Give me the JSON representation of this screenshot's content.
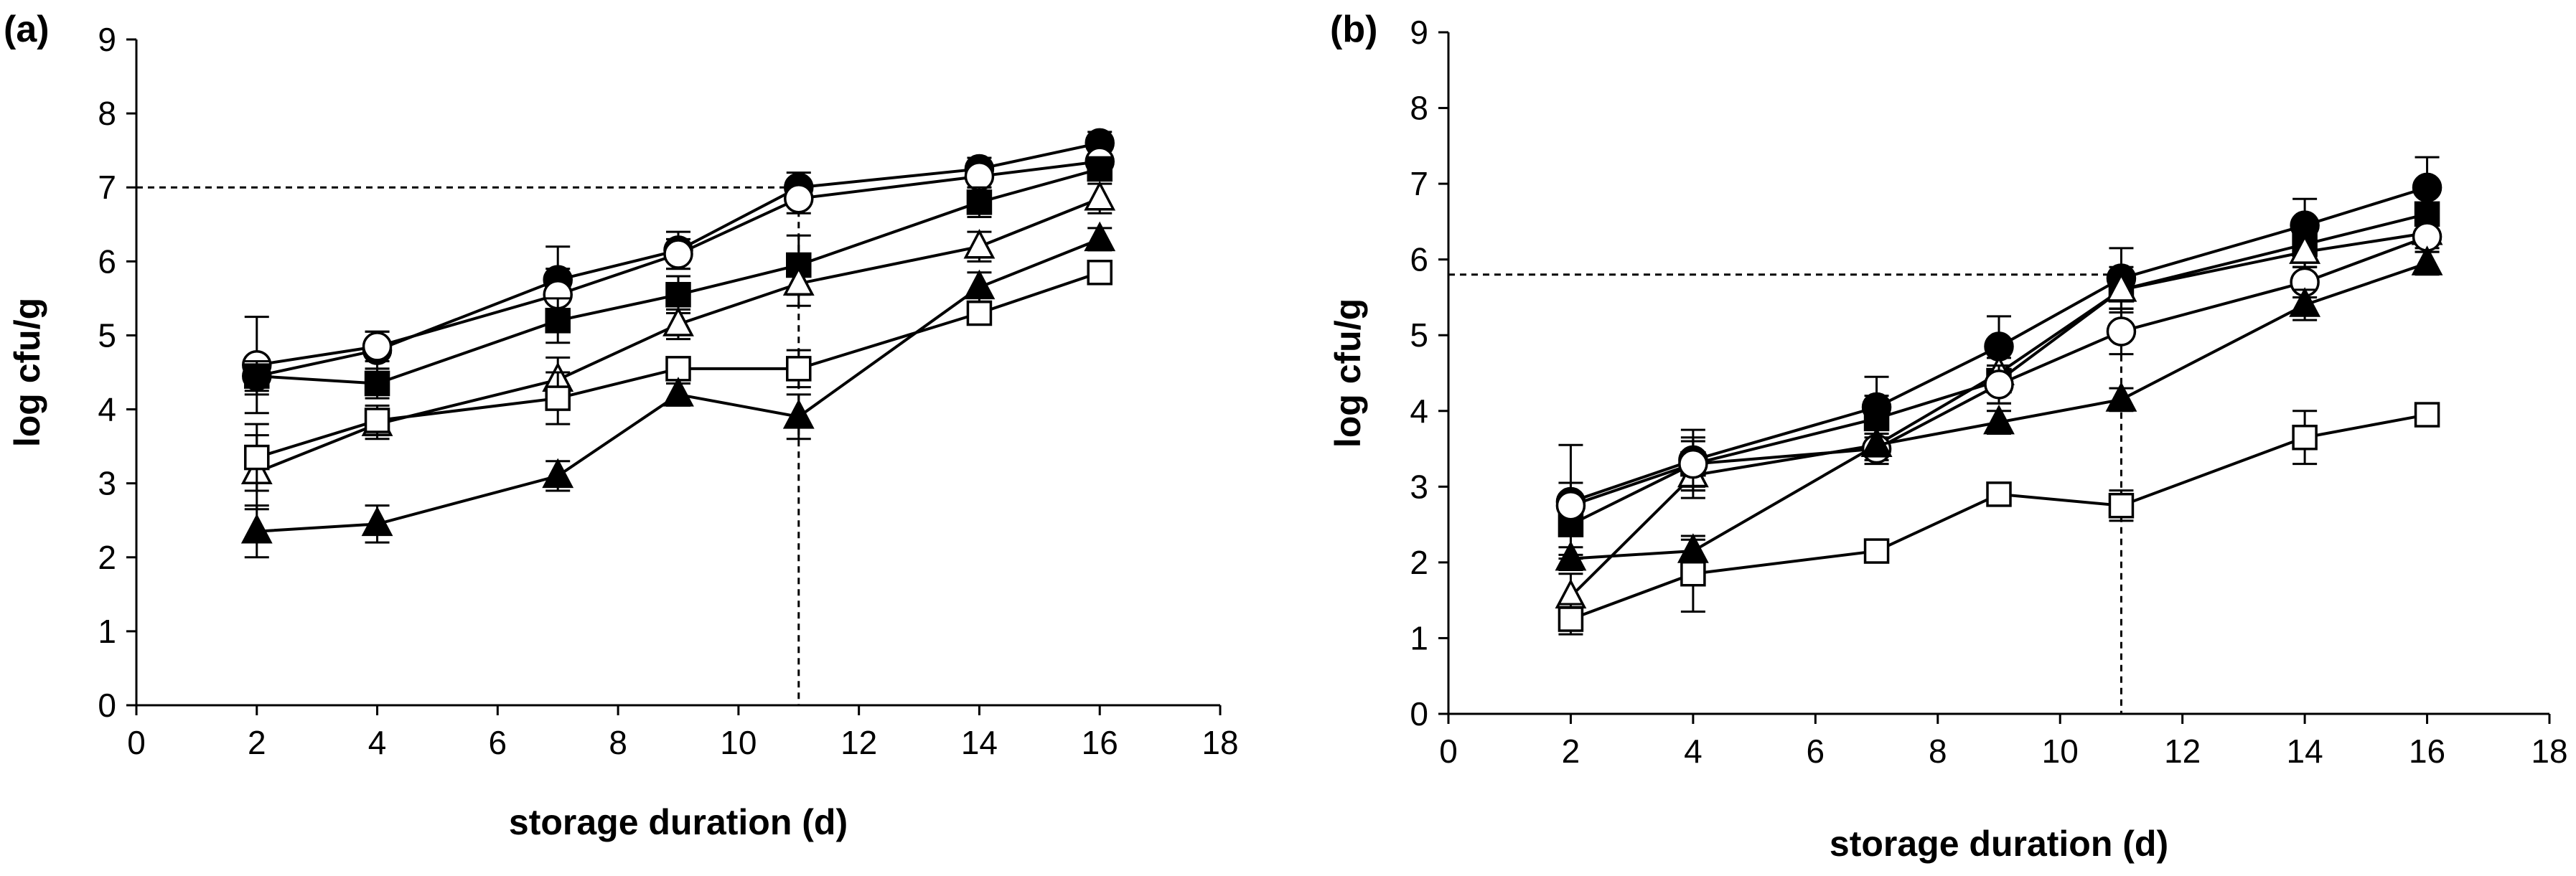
{
  "chart_data": [
    {
      "type": "line",
      "panel_label": "(a)",
      "xlabel": "storage duration (d)",
      "ylabel": "log cfu/g",
      "xlim": [
        0,
        18
      ],
      "ylim": [
        0,
        9
      ],
      "xticks": [
        "0",
        "2",
        "4",
        "6",
        "8",
        "10",
        "12",
        "14",
        "16",
        "18"
      ],
      "yticks": [
        "0",
        "1",
        "2",
        "3",
        "4",
        "5",
        "6",
        "7",
        "8",
        "9"
      ],
      "grid": false,
      "legend": "none",
      "reference_lines": {
        "y": 7.0,
        "x": 11
      },
      "x": [
        2,
        4,
        7,
        9,
        11,
        14,
        16
      ],
      "series": [
        {
          "name": "filled-circle",
          "marker": "circle",
          "filled": true,
          "values": [
            4.45,
            4.8,
            5.75,
            6.15,
            7.0,
            7.25,
            7.6
          ],
          "errors": [
            0.25,
            0.25,
            0.45,
            0.25,
            0.2,
            0.15,
            0.15
          ]
        },
        {
          "name": "open-circle",
          "marker": "circle",
          "filled": false,
          "values": [
            4.6,
            4.85,
            5.55,
            6.1,
            6.85,
            7.15,
            7.35
          ],
          "errors": [
            0.65,
            0.2,
            0.35,
            0.2,
            0.2,
            0.15,
            0.15
          ]
        },
        {
          "name": "filled-square",
          "marker": "square",
          "filled": true,
          "values": [
            4.45,
            4.35,
            5.2,
            5.55,
            5.95,
            6.8,
            7.25
          ],
          "errors": [
            0.2,
            0.2,
            0.3,
            0.25,
            0.4,
            0.2,
            0.15
          ]
        },
        {
          "name": "open-triangle",
          "marker": "triangle",
          "filled": false,
          "values": [
            3.15,
            3.8,
            4.4,
            5.15,
            5.7,
            6.2,
            6.85
          ],
          "errors": [
            0.5,
            0.2,
            0.3,
            0.2,
            0.3,
            0.2,
            0.2
          ]
        },
        {
          "name": "open-square",
          "marker": "square",
          "filled": false,
          "values": [
            3.35,
            3.85,
            4.15,
            4.55,
            4.55,
            5.3,
            5.85
          ],
          "errors": [
            0.45,
            0.2,
            0.35,
            0.15,
            0.25,
            0.15,
            0.15
          ]
        },
        {
          "name": "filled-triangle",
          "marker": "triangle",
          "filled": true,
          "values": [
            2.35,
            2.45,
            3.1,
            4.2,
            3.9,
            5.65,
            6.3
          ],
          "errors": [
            0.35,
            0.25,
            0.2,
            0.15,
            0.3,
            0.2,
            0.15
          ]
        }
      ]
    },
    {
      "type": "line",
      "panel_label": "(b)",
      "xlabel": "storage duration (d)",
      "ylabel": "log cfu/g",
      "xlim": [
        0,
        18
      ],
      "ylim": [
        0,
        9
      ],
      "xticks": [
        "0",
        "2",
        "4",
        "6",
        "8",
        "10",
        "12",
        "14",
        "16",
        "18"
      ],
      "yticks": [
        "0",
        "1",
        "2",
        "3",
        "4",
        "5",
        "6",
        "7",
        "8",
        "9"
      ],
      "grid": false,
      "legend": "none",
      "reference_lines": {
        "y": 5.8,
        "x": 11
      },
      "x": [
        2,
        4,
        7,
        9,
        11,
        14,
        16
      ],
      "series": [
        {
          "name": "filled-circle",
          "marker": "circle",
          "filled": true,
          "values": [
            2.8,
            3.35,
            4.05,
            4.85,
            5.75,
            6.45,
            6.95
          ],
          "errors": [
            0.75,
            0.4,
            0.4,
            0.4,
            0.4,
            0.35,
            0.4
          ]
        },
        {
          "name": "filled-square",
          "marker": "square",
          "filled": true,
          "values": [
            2.5,
            3.3,
            3.9,
            4.4,
            5.6,
            6.2,
            6.6
          ],
          "errors": [
            0.4,
            0.35,
            0.3,
            0.3,
            0.3,
            0.3,
            0.3
          ]
        },
        {
          "name": "open-triangle",
          "marker": "triangle",
          "filled": false,
          "values": [
            1.55,
            3.15,
            3.55,
            4.5,
            5.6,
            6.1,
            6.35
          ],
          "errors": [
            0.3,
            0.3,
            0.2,
            0.25,
            0.25,
            0.2,
            0.2
          ]
        },
        {
          "name": "open-circle",
          "marker": "circle",
          "filled": false,
          "values": [
            2.75,
            3.3,
            3.5,
            4.35,
            5.05,
            5.7,
            6.3
          ],
          "errors": [
            0.3,
            0.3,
            0.2,
            0.25,
            0.3,
            0.2,
            0.2
          ]
        },
        {
          "name": "filled-triangle",
          "marker": "triangle",
          "filled": true,
          "values": [
            2.05,
            2.15,
            3.55,
            3.85,
            4.15,
            5.4,
            5.95
          ],
          "errors": [
            0.15,
            0.15,
            0.15,
            0.15,
            0.15,
            0.2,
            0.15
          ]
        },
        {
          "name": "open-square",
          "marker": "square",
          "filled": false,
          "values": [
            1.25,
            1.85,
            2.15,
            2.9,
            2.75,
            3.65,
            3.95
          ],
          "errors": [
            0.2,
            0.5,
            0.15,
            0.15,
            0.2,
            0.35,
            0.15
          ]
        }
      ]
    }
  ]
}
